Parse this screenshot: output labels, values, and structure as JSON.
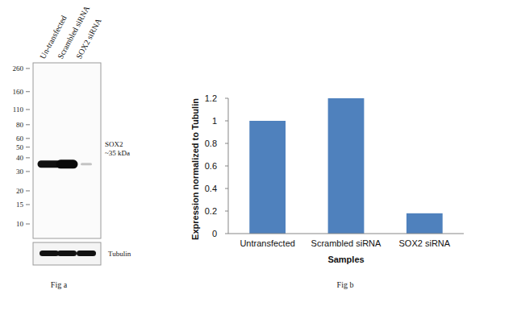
{
  "blot": {
    "lanes": [
      "Un-transfected",
      "Scrambled siRNA",
      "SOX2 siRNA"
    ],
    "markers": [
      260,
      160,
      110,
      80,
      60,
      50,
      40,
      30,
      20,
      15,
      10
    ],
    "band": {
      "label": "SOX2",
      "size_label": "~35 kDa",
      "kda": 35
    },
    "loading_control": "Tubulin",
    "caption": "Fig a"
  },
  "chart_data": {
    "type": "bar",
    "categories": [
      "Untransfected",
      "Scrambled siRNA",
      "SOX2 siRNA"
    ],
    "values": [
      1,
      1.2,
      0.18
    ],
    "color": "#4f81bd",
    "ylim": [
      0,
      1.2
    ],
    "yticks": [
      0,
      0.2,
      0.4,
      0.6,
      0.8,
      1,
      1.2
    ],
    "x_label": "Samples",
    "y_label": "Expression normalized to Tubulin",
    "caption": "Fig b",
    "grid": false
  }
}
